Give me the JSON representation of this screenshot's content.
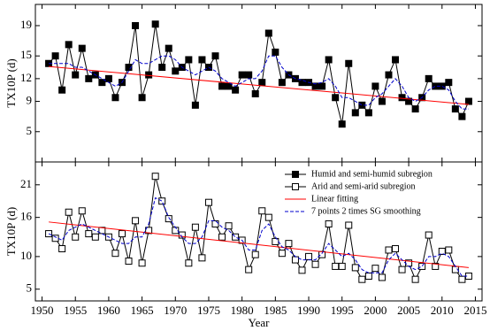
{
  "chart_data": [
    {
      "type": "line",
      "ylabel": "TX10P (d)",
      "xlim": [
        1949,
        2016
      ],
      "ylim": [
        1,
        21.8
      ],
      "yticks": [
        5,
        9,
        12,
        15,
        19
      ],
      "x": [
        1951,
        1952,
        1953,
        1954,
        1955,
        1956,
        1957,
        1958,
        1959,
        1960,
        1961,
        1962,
        1963,
        1964,
        1965,
        1966,
        1967,
        1968,
        1969,
        1970,
        1971,
        1972,
        1973,
        1974,
        1975,
        1976,
        1977,
        1978,
        1979,
        1980,
        1981,
        1982,
        1983,
        1984,
        1985,
        1986,
        1987,
        1988,
        1989,
        1990,
        1991,
        1992,
        1993,
        1994,
        1995,
        1996,
        1997,
        1998,
        1999,
        2000,
        2001,
        2002,
        2003,
        2004,
        2005,
        2006,
        2007,
        2008,
        2009,
        2010,
        2011,
        2012,
        2013,
        2014
      ],
      "series": [
        {
          "name": "Humid and semi-humid subregion",
          "color": "#000000",
          "marker": "filled-square",
          "dash": "solid",
          "values": [
            14,
            15,
            10.5,
            16.5,
            12.5,
            16,
            12,
            12.5,
            11.5,
            12,
            9.5,
            11.5,
            13.5,
            19,
            9.5,
            12.5,
            19.2,
            13.5,
            16,
            13,
            13.5,
            14.5,
            8.5,
            14.5,
            13.5,
            15,
            11,
            11,
            10.5,
            12.5,
            12.5,
            10,
            11.5,
            18,
            15.5,
            11.5,
            12.5,
            12,
            11.5,
            11.5,
            11,
            11,
            14.5,
            9.5,
            6,
            14,
            7.5,
            8.5,
            7.5,
            11,
            9,
            12.5,
            14.5,
            9.5,
            9,
            8,
            9.5,
            12,
            11,
            11,
            11.5,
            8,
            7,
            9
          ]
        },
        {
          "name": "Linear fitting",
          "color": "#ff0000",
          "dash": "solid",
          "x": [
            1951,
            2014
          ],
          "values": [
            13.6,
            8.6
          ]
        },
        {
          "name": "7 points 2 times SG smoothing",
          "color": "#0000cc",
          "dash": "dashed",
          "values": [
            14,
            14,
            14,
            14,
            13.5,
            13.5,
            13,
            12.5,
            12,
            11.5,
            11,
            11.5,
            13,
            14.5,
            14,
            14,
            14.5,
            15,
            15,
            14.5,
            13.5,
            13,
            12.5,
            13,
            13.5,
            13,
            12,
            11.5,
            11,
            11.5,
            12,
            12,
            13,
            15,
            15,
            13.5,
            12.5,
            12,
            11.8,
            11.5,
            11.3,
            11.5,
            12,
            11,
            9.5,
            9.5,
            9,
            8.5,
            8.5,
            9.5,
            10,
            11,
            12,
            11,
            9.5,
            9,
            9.5,
            10.5,
            11,
            11,
            10.5,
            9,
            8,
            8
          ]
        }
      ]
    },
    {
      "type": "line",
      "ylabel": "TX10P (d)",
      "xlabel": "Year",
      "xlim": [
        1949,
        2016
      ],
      "ylim": [
        3.2,
        24.5
      ],
      "yticks": [
        5,
        10,
        16,
        21
      ],
      "xticks": [
        1950,
        1955,
        1960,
        1965,
        1970,
        1975,
        1980,
        1985,
        1990,
        1995,
        2000,
        2005,
        2010,
        2015
      ],
      "legend": "upper right",
      "x": [
        1951,
        1952,
        1953,
        1954,
        1955,
        1956,
        1957,
        1958,
        1959,
        1960,
        1961,
        1962,
        1963,
        1964,
        1965,
        1966,
        1967,
        1968,
        1969,
        1970,
        1971,
        1972,
        1973,
        1974,
        1975,
        1976,
        1977,
        1978,
        1979,
        1980,
        1981,
        1982,
        1983,
        1984,
        1985,
        1986,
        1987,
        1988,
        1989,
        1990,
        1991,
        1992,
        1993,
        1994,
        1995,
        1996,
        1997,
        1998,
        1999,
        2000,
        2001,
        2002,
        2003,
        2004,
        2005,
        2006,
        2007,
        2008,
        2009,
        2010,
        2011,
        2012,
        2013,
        2014
      ],
      "series": [
        {
          "name": "Humid and semi-humid subregion",
          "color": "#000000",
          "marker": "filled-square",
          "dash": "solid",
          "values": null
        },
        {
          "name": "Arid and semi-arid subregion",
          "color": "#000000",
          "marker": "open-square",
          "dash": "solid",
          "values": [
            13.5,
            12.8,
            11.2,
            16.8,
            13,
            17,
            13.5,
            13,
            14,
            13,
            10.5,
            13.5,
            9.3,
            15.5,
            9,
            14,
            22.3,
            18.5,
            15.8,
            14,
            13.3,
            9,
            14.5,
            9.8,
            18.3,
            15,
            13,
            14.7,
            13,
            12.5,
            8,
            10.3,
            17,
            16,
            12.3,
            10.5,
            12,
            9.5,
            7.9,
            10,
            8.8,
            10.3,
            15,
            8.5,
            8.5,
            14.8,
            8.3,
            6.5,
            7,
            8.2,
            6.8,
            11,
            11.2,
            8,
            9,
            6.5,
            8.5,
            13.3,
            8.5,
            10.8,
            11,
            8,
            6.5,
            7
          ]
        },
        {
          "name": "Linear fitting",
          "color": "#ff0000",
          "dash": "solid",
          "x": [
            1951,
            2014
          ],
          "values": [
            15.3,
            8.3
          ]
        },
        {
          "name": "7 points 2 times SG smoothing",
          "color": "#0000cc",
          "dash": "dashed",
          "values": [
            13.5,
            13,
            12.5,
            14,
            14.5,
            15,
            14.5,
            14,
            13.5,
            13,
            12.5,
            12,
            12,
            13,
            13,
            15,
            19,
            18.5,
            16,
            14.5,
            13,
            12,
            12,
            13,
            15.5,
            15.5,
            14.5,
            14,
            13,
            12.5,
            11,
            11,
            14,
            15,
            13,
            11.5,
            11,
            10,
            9.5,
            9.5,
            9.5,
            10.5,
            12,
            11,
            10,
            10.5,
            9.5,
            8,
            7.5,
            7.5,
            7.5,
            9.5,
            10.5,
            9.5,
            8.5,
            8,
            8.5,
            10,
            10,
            10.5,
            10,
            8.5,
            7,
            7
          ]
        }
      ]
    }
  ]
}
